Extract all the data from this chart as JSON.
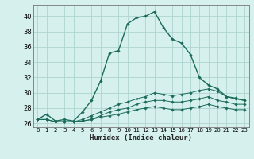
{
  "xlabel": "Humidex (Indice chaleur)",
  "background_color": "#d6f0ee",
  "grid_color": "#aed4cf",
  "line_color": "#1a6b5a",
  "xlim": [
    -0.5,
    23.5
  ],
  "ylim": [
    25.5,
    41.5
  ],
  "yticks": [
    26,
    28,
    30,
    32,
    34,
    36,
    38,
    40
  ],
  "xticks": [
    0,
    1,
    2,
    3,
    4,
    5,
    6,
    7,
    8,
    9,
    10,
    11,
    12,
    13,
    14,
    15,
    16,
    17,
    18,
    19,
    20,
    21,
    22,
    23
  ],
  "series": [
    [
      26.5,
      27.2,
      26.3,
      26.5,
      26.3,
      27.5,
      29.0,
      31.5,
      35.2,
      35.5,
      39.0,
      39.8,
      40.0,
      40.6,
      38.5,
      37.0,
      36.5,
      35.0,
      32.0,
      31.0,
      30.5,
      29.5,
      29.3,
      29.0
    ],
    [
      26.5,
      26.5,
      26.2,
      26.2,
      26.2,
      26.5,
      27.0,
      27.5,
      28.0,
      28.5,
      28.8,
      29.2,
      29.5,
      30.0,
      29.8,
      29.6,
      29.8,
      30.0,
      30.3,
      30.5,
      30.2,
      29.5,
      29.2,
      29.0
    ],
    [
      26.5,
      26.5,
      26.2,
      26.2,
      26.2,
      26.3,
      26.5,
      27.0,
      27.5,
      27.8,
      28.0,
      28.5,
      28.8,
      29.0,
      29.0,
      28.8,
      28.8,
      29.0,
      29.2,
      29.5,
      29.0,
      28.8,
      28.5,
      28.5
    ],
    [
      26.5,
      26.5,
      26.2,
      26.2,
      26.2,
      26.3,
      26.5,
      26.8,
      27.0,
      27.2,
      27.5,
      27.8,
      28.0,
      28.2,
      28.0,
      27.8,
      27.8,
      28.0,
      28.2,
      28.5,
      28.2,
      28.0,
      27.8,
      27.8
    ]
  ]
}
